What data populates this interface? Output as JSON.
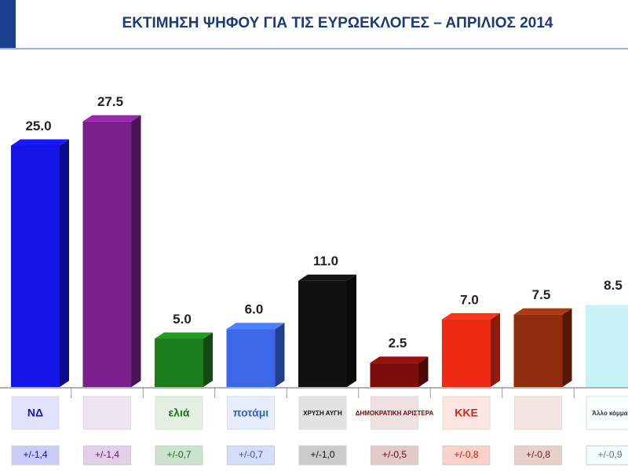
{
  "chart_data": {
    "type": "bar3d",
    "title": "ΕΚΤΙΜΗΣΗ ΨΗΦΟΥ ΓΙΑ ΤΙΣ ΕΥΡΩΕΚΛΟΓΕΣ – ΑΠΡΙΛΙΟΣ 2014",
    "categories": [
      "ΝΔ",
      null,
      "ελιά",
      "ποτάμι",
      "ΧΡΥΣΗ ΑΥΓΗ",
      "ΔΗΜΟΚΡΑΤΙΚΗ ΑΡΙΣΤΕΡΑ",
      "ΚΚΕ",
      null,
      "Άλλο κόμμα"
    ],
    "values": [
      25,
      27.5,
      5,
      6,
      11,
      2.5,
      7,
      7.5,
      8.5
    ],
    "value_labels": [
      "25.0",
      "27.5",
      "5.0",
      "6.0",
      "11.0",
      "2.5",
      "7.0",
      "7.5",
      "8.5"
    ],
    "margin_labels": [
      "+/-1,4",
      "+/-1,4",
      "+/-0,7",
      "+/-0,7",
      "+/-1,0",
      "+/-0,5",
      "+/-0,8",
      "+/-0,8",
      "+/-0,9"
    ],
    "colors": [
      "#1414e6",
      "#7a1f8c",
      "#1c7d1c",
      "#3b68e6",
      "#111111",
      "#7a0c0c",
      "#ee2a14",
      "#8e2c0c",
      "#c8f2f6"
    ]
  }
}
